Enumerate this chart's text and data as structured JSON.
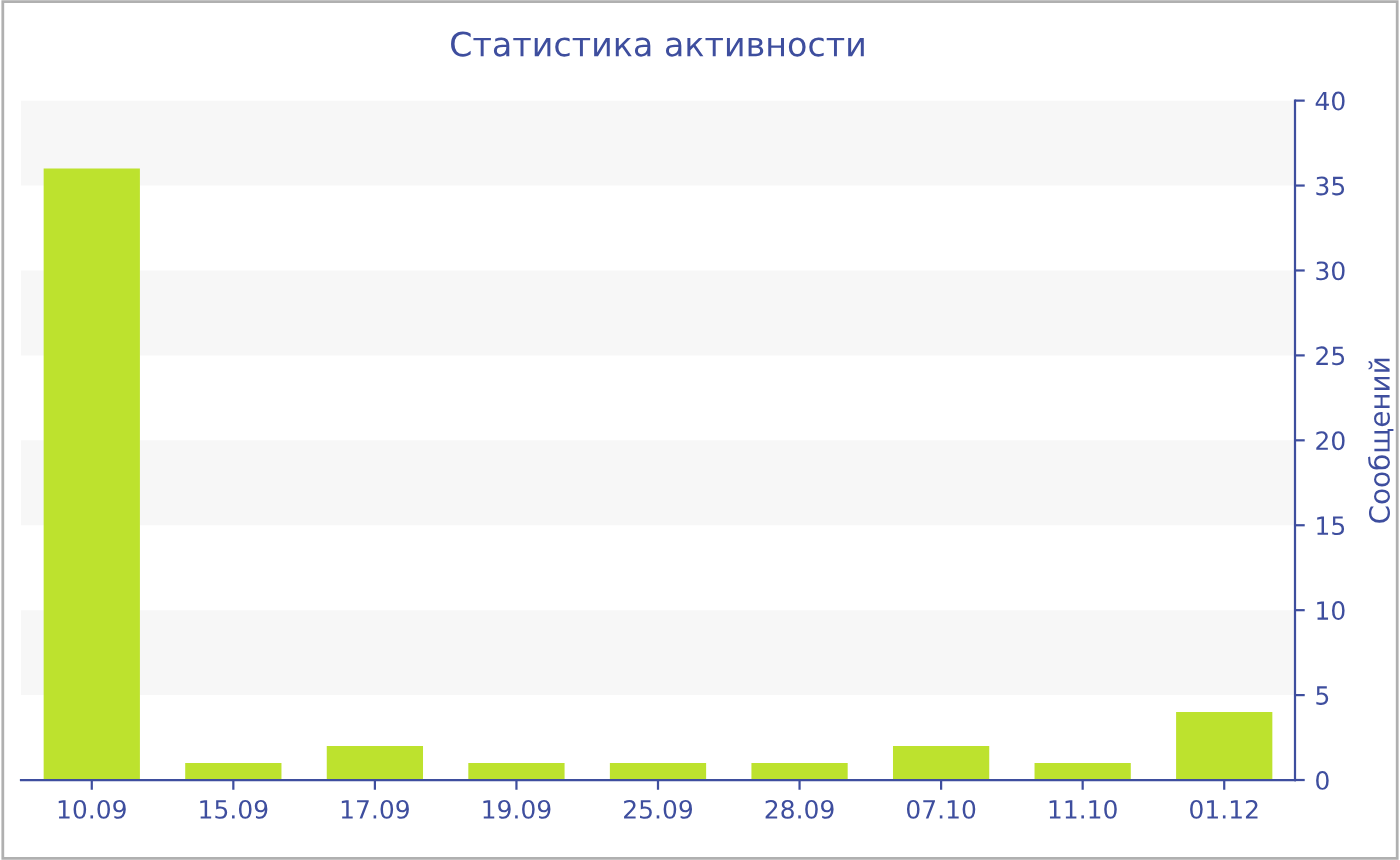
{
  "chart_data": {
    "type": "bar",
    "title": "Статистика активности",
    "ylabel": "Сообщений",
    "categories": [
      "10.09",
      "15.09",
      "17.09",
      "19.09",
      "25.09",
      "28.09",
      "07.10",
      "11.10",
      "01.12"
    ],
    "values": [
      36,
      1,
      2,
      1,
      1,
      1,
      2,
      1,
      4
    ],
    "color": "#bde22e",
    "ylim": [
      0,
      40
    ],
    "yticks": [
      0,
      5,
      10,
      15,
      20,
      25,
      30,
      35,
      40
    ],
    "grid": false,
    "legend": false,
    "bands": [
      {
        "axis": "y",
        "from": 5,
        "to": 10,
        "color": "#f7f7f7"
      },
      {
        "axis": "y",
        "from": 15,
        "to": 20,
        "color": "#f7f7f7"
      },
      {
        "axis": "y",
        "from": 25,
        "to": 30,
        "color": "#f7f7f7"
      },
      {
        "axis": "y",
        "from": 35,
        "to": 40,
        "color": "#f7f7f7"
      }
    ]
  }
}
